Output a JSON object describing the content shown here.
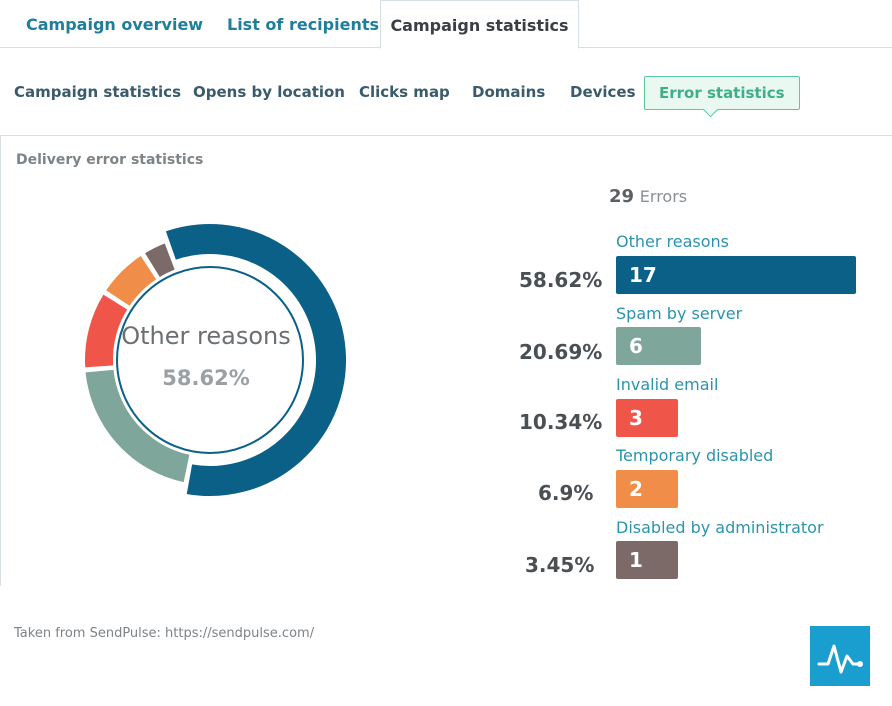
{
  "tabs_top": [
    {
      "label": "Campaign overview"
    },
    {
      "label": "List of recipients"
    },
    {
      "label": "Campaign statistics"
    }
  ],
  "tabs_sub": [
    {
      "label": "Campaign statistics"
    },
    {
      "label": "Opens by location"
    },
    {
      "label": "Clicks map"
    },
    {
      "label": "Domains"
    },
    {
      "label": "Devices"
    },
    {
      "label": "Error statistics"
    }
  ],
  "section": {
    "title": "Delivery error statistics"
  },
  "donut": {
    "center_label": "Other reasons",
    "center_value": "58.62%"
  },
  "totals": {
    "count": "29",
    "unit": "Errors"
  },
  "chart_data": {
    "type": "pie",
    "title": "Delivery error statistics",
    "total": 29,
    "categories": [
      "Other reasons",
      "Spam by server",
      "Invalid email",
      "Temporary disabled",
      "Disabled by administrator"
    ],
    "values": [
      17,
      6,
      3,
      2,
      1
    ],
    "percent_labels": [
      "58.62%",
      "20.69%",
      "10.34%",
      "6.9%",
      "3.45%"
    ],
    "colors": [
      "#0b6087",
      "#7fa69b",
      "#ef5649",
      "#f08d48",
      "#7b6a67"
    ]
  },
  "footer": {
    "note": "Taken from SendPulse: https://sendpulse.com/"
  },
  "logo": {
    "icon": "pulse-icon"
  }
}
